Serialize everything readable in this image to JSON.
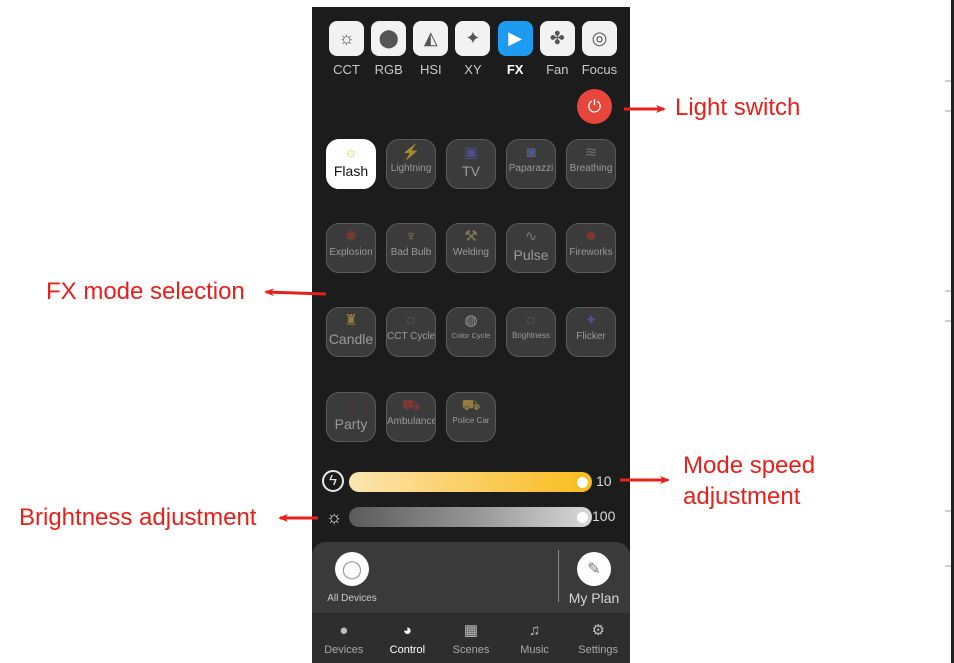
{
  "modes": [
    {
      "label": "CCT",
      "icon": "sun-icon",
      "glyph": "☼",
      "active": false
    },
    {
      "label": "RGB",
      "icon": "rgb-circles-icon",
      "glyph": "⬤",
      "active": false
    },
    {
      "label": "HSI",
      "icon": "paint-bucket-icon",
      "glyph": "◭",
      "active": false
    },
    {
      "label": "XY",
      "icon": "sparkle-icon",
      "glyph": "✦",
      "active": false
    },
    {
      "label": "FX",
      "icon": "fx-play-icon",
      "glyph": "▶",
      "active": true
    },
    {
      "label": "Fan",
      "icon": "fan-icon",
      "glyph": "✤",
      "active": false
    },
    {
      "label": "Focus",
      "icon": "focus-icon",
      "glyph": "◎",
      "active": false
    }
  ],
  "power_icon": "power-icon",
  "fx_effects": [
    {
      "label": "Flash",
      "icon": "flash-sun-icon",
      "glyph": "☼",
      "color": "#f4c542",
      "selected": true
    },
    {
      "label": "Lightning",
      "icon": "lightning-icon",
      "glyph": "⚡",
      "color": "#c8b27a",
      "selected": false
    },
    {
      "label": "TV",
      "icon": "tv-icon",
      "glyph": "▣",
      "color": "#6a5ad6",
      "selected": false
    },
    {
      "label": "Paparazzi",
      "icon": "camera-icon",
      "glyph": "◙",
      "color": "#6a79d6",
      "selected": false
    },
    {
      "label": "Breathing",
      "icon": "wind-icon",
      "glyph": "≋",
      "color": "#9a9a9a",
      "selected": false
    },
    {
      "label": "Explosion",
      "icon": "explosion-icon",
      "glyph": "✺",
      "color": "#b03a2e",
      "selected": false
    },
    {
      "label": "Bad Bulb",
      "icon": "bad-bulb-icon",
      "glyph": "♆",
      "color": "#c8b27a",
      "selected": false
    },
    {
      "label": "Welding",
      "icon": "welding-icon",
      "glyph": "⚒",
      "color": "#c8b27a",
      "selected": false
    },
    {
      "label": "Pulse",
      "icon": "pulse-icon",
      "glyph": "∿",
      "color": "#aaaaaa",
      "selected": false
    },
    {
      "label": "Fireworks",
      "icon": "fireworks-icon",
      "glyph": "✹",
      "color": "#b03a2e",
      "selected": false
    },
    {
      "label": "Candle",
      "icon": "candle-icon",
      "glyph": "♜",
      "color": "#d9b54a",
      "selected": false
    },
    {
      "label": "CCT Cycle",
      "icon": "cct-cycle-icon",
      "glyph": "◌",
      "color": "#aaaaaa",
      "selected": false
    },
    {
      "label": "Color Cycle",
      "icon": "color-cycle-icon",
      "glyph": "◍",
      "color": "#e0e0e0",
      "selected": false
    },
    {
      "label": "Brightness",
      "icon": "brightness-cycle-icon",
      "glyph": "◌",
      "color": "#aaaaaa",
      "selected": false
    },
    {
      "label": "Flicker",
      "icon": "flicker-sparkle-icon",
      "glyph": "✦",
      "color": "#5a6ad6",
      "selected": false
    },
    {
      "label": "Party",
      "icon": "party-icon",
      "glyph": "♪",
      "color": "#7a2a2a",
      "selected": false
    },
    {
      "label": "Ambulance",
      "icon": "ambulance-icon",
      "glyph": "⛟",
      "color": "#b03a2e",
      "selected": false
    },
    {
      "label": "Police Car",
      "icon": "police-car-icon",
      "glyph": "⛟",
      "color": "#d9b54a",
      "selected": false
    }
  ],
  "sliders": {
    "speed": {
      "value": "10",
      "level": 1.0,
      "icon": "speed-lightning-icon",
      "glyph": "ϟ"
    },
    "brightness": {
      "value": "100",
      "level": 1.0,
      "icon": "brightness-sun-icon",
      "glyph": "☼"
    }
  },
  "devices": {
    "all_devices_label": "All Devices",
    "all_devices_icon": "bulb-outline-icon",
    "my_plan_label": "My Plan",
    "my_plan_icon": "plan-document-icon"
  },
  "tabs": [
    {
      "label": "Devices",
      "icon": "bulb-icon",
      "glyph": "●",
      "active": false
    },
    {
      "label": "Control",
      "icon": "palette-icon",
      "glyph": "◕",
      "active": true
    },
    {
      "label": "Scenes",
      "icon": "scenes-grid-icon",
      "glyph": "▦",
      "active": false
    },
    {
      "label": "Music",
      "icon": "music-note-icon",
      "glyph": "♫",
      "active": false
    },
    {
      "label": "Settings",
      "icon": "gear-icon",
      "glyph": "⚙",
      "active": false
    }
  ],
  "annotations": {
    "light_switch": "Light switch",
    "fx_mode_selection": "FX mode selection",
    "mode_speed_line1": "Mode speed",
    "mode_speed_line2": "adjustment",
    "brightness_adjustment": "Brightness adjustment"
  },
  "colors": {
    "annotation_red": "#e8201c",
    "accent_blue": "#1d9bf0",
    "power_red": "#e8463c"
  }
}
